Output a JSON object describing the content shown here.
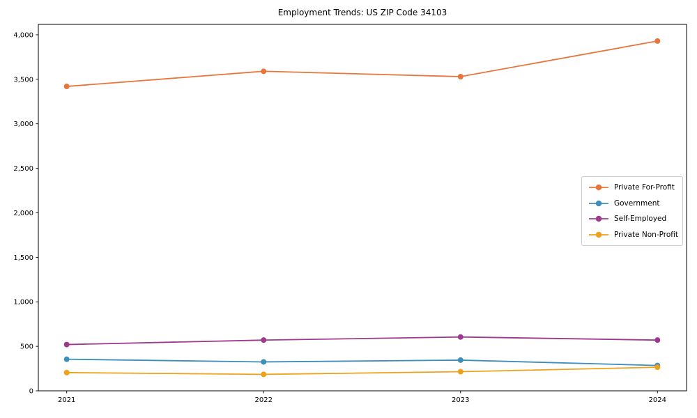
{
  "figure": {
    "background_color": "#ffffff",
    "frame_color": "#000000",
    "text_color": "#000000"
  },
  "chart_data": {
    "type": "line",
    "title": "Employment Trends: US ZIP Code 34103",
    "x": [
      "2021",
      "2022",
      "2023",
      "2024"
    ],
    "series": [
      {
        "name": "Private For-Profit",
        "color": "#e8763c",
        "values": [
          3420,
          3590,
          3530,
          3930
        ]
      },
      {
        "name": "Government",
        "color": "#3d8eb8",
        "values": [
          355,
          325,
          345,
          285
        ]
      },
      {
        "name": "Self-Employed",
        "color": "#9e3a8b",
        "values": [
          520,
          570,
          605,
          570
        ]
      },
      {
        "name": "Private Non-Profit",
        "color": "#f0a11a",
        "values": [
          205,
          185,
          215,
          265
        ]
      }
    ],
    "xlabel": "",
    "ylabel": "",
    "ylim": [
      0,
      4117
    ],
    "yticks": [
      0,
      500,
      1000,
      1500,
      2000,
      2500,
      3000,
      3500,
      4000
    ],
    "ytick_labels": [
      "0",
      "500",
      "1,000",
      "1,500",
      "2,000",
      "2,500",
      "3,000",
      "3,500",
      "4,000"
    ],
    "grid": false,
    "legend_position": "right-middle",
    "marker": "circle"
  }
}
